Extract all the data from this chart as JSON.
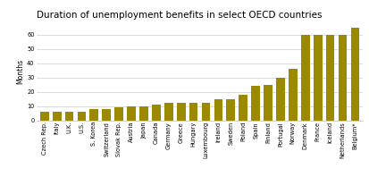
{
  "title": "Duration of unemployment benefits in select OECD countries",
  "ylabel": "Months",
  "bar_color": "#9b8a00",
  "background_color": "#ffffff",
  "plot_bg_color": "#ffffff",
  "border_color": "#cccccc",
  "categories": [
    "Czech Rep.",
    "Italy",
    "U.K.",
    "U.S.",
    "S. Korea",
    "Switzerland",
    "Slovak Rep.",
    "Austria",
    "Japan",
    "Canada",
    "Germany",
    "Greece",
    "Hungary",
    "Luxembourg",
    "Ireland",
    "Sweden",
    "Poland",
    "Spain",
    "Finland",
    "Portugal",
    "Norway",
    "Denmark",
    "France",
    "Iceland",
    "Netherlands",
    "Belgium*"
  ],
  "values": [
    6,
    6,
    6,
    6,
    8,
    8,
    9,
    10,
    10,
    11,
    12,
    12,
    12,
    12,
    15,
    15,
    18,
    24,
    25,
    30,
    36,
    60,
    60,
    60,
    60,
    65
  ],
  "ylim": [
    0,
    68
  ],
  "yticks": [
    0,
    10,
    20,
    30,
    40,
    50,
    60
  ],
  "grid_color": "#cccccc",
  "title_fontsize": 7.5,
  "tick_fontsize": 4.8,
  "ylabel_fontsize": 5.5
}
